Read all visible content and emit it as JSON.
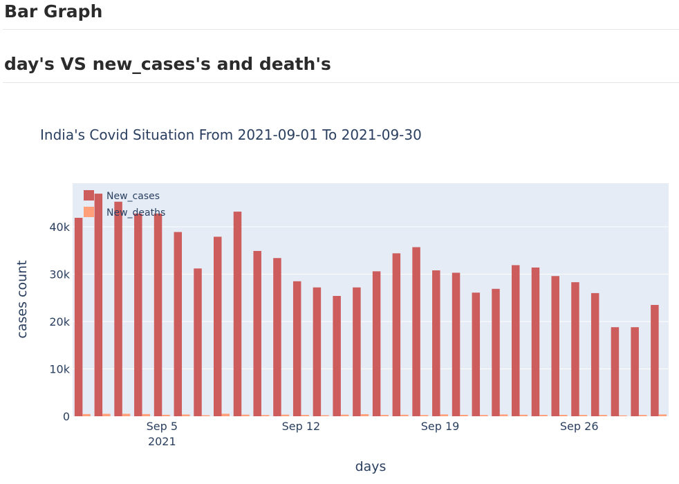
{
  "page": {
    "heading_1": "Bar Graph",
    "heading_2": "day's VS new_cases's and death's"
  },
  "chart_data": {
    "type": "bar",
    "title": "India's Covid Situation From 2021-09-01 To 2021-09-30",
    "xlabel": "days",
    "ylabel": "cases count",
    "x_start": "2021-09-01",
    "x_end": "2021-09-30",
    "x": [
      "2021-09-01",
      "2021-09-02",
      "2021-09-03",
      "2021-09-04",
      "2021-09-05",
      "2021-09-06",
      "2021-09-07",
      "2021-09-08",
      "2021-09-09",
      "2021-09-10",
      "2021-09-11",
      "2021-09-12",
      "2021-09-13",
      "2021-09-14",
      "2021-09-15",
      "2021-09-16",
      "2021-09-17",
      "2021-09-18",
      "2021-09-19",
      "2021-09-20",
      "2021-09-21",
      "2021-09-22",
      "2021-09-23",
      "2021-09-24",
      "2021-09-25",
      "2021-09-26",
      "2021-09-27",
      "2021-09-28",
      "2021-09-29",
      "2021-09-30"
    ],
    "x_ticks": [
      {
        "date": "2021-09-05",
        "label": "Sep 5",
        "sublabel": "2021"
      },
      {
        "date": "2021-09-12",
        "label": "Sep 12",
        "sublabel": ""
      },
      {
        "date": "2021-09-19",
        "label": "Sep 19",
        "sublabel": ""
      },
      {
        "date": "2021-09-26",
        "label": "Sep 26",
        "sublabel": ""
      }
    ],
    "y_ticks": [
      {
        "value": 0,
        "label": "0"
      },
      {
        "value": 10000,
        "label": "10k"
      },
      {
        "value": 20000,
        "label": "20k"
      },
      {
        "value": 30000,
        "label": "30k"
      },
      {
        "value": 40000,
        "label": "40k"
      }
    ],
    "ylim": [
      0,
      49200
    ],
    "grid": true,
    "legend_position": "top-left",
    "series": [
      {
        "name": "New_cases",
        "color": "#CD5C5C",
        "values": [
          41900,
          47000,
          45300,
          42800,
          42800,
          38900,
          31200,
          37900,
          43200,
          34900,
          33400,
          28500,
          27200,
          25400,
          27200,
          30600,
          34400,
          35700,
          30800,
          30300,
          26100,
          26900,
          31900,
          31400,
          29600,
          28300,
          26000,
          18800,
          18800,
          23500
        ]
      },
      {
        "name": "New_deaths",
        "color": "#FFA07A",
        "values": [
          460,
          509,
          514,
          460,
          308,
          369,
          219,
          529,
          338,
          260,
          339,
          282,
          219,
          339,
          431,
          281,
          320,
          256,
          383,
          290,
          270,
          378,
          318,
          290,
          290,
          276,
          276,
          179,
          277,
          378
        ]
      }
    ]
  },
  "style": {
    "plot_bg": "#E5ECF6",
    "grid_color": "#ffffff",
    "text_color": "#2a3f5f"
  }
}
